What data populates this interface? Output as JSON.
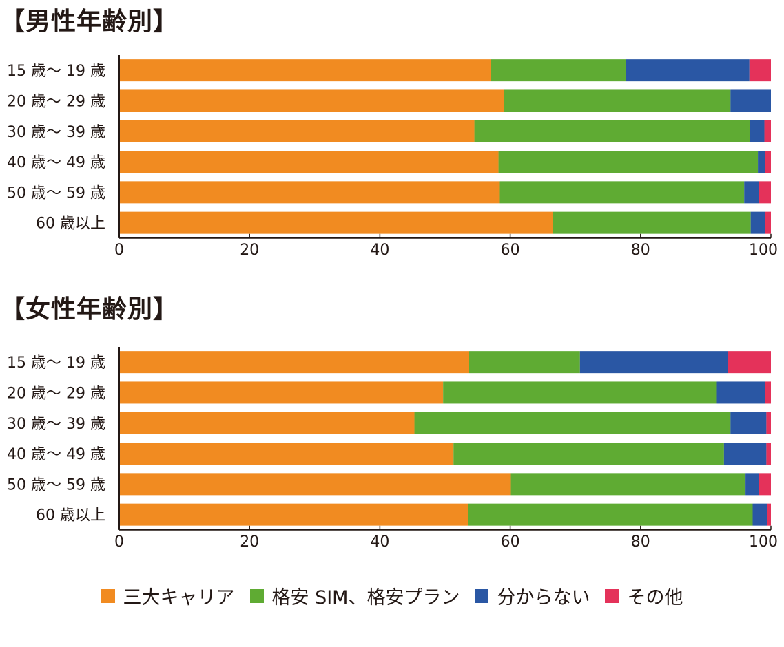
{
  "chart_data": [
    {
      "type": "bar",
      "orientation": "horizontal",
      "stacked": true,
      "title": "【男性年齢別】",
      "categories": [
        "15 歳～ 19 歳",
        "20 歳～ 29 歳",
        "30 歳～ 39 歳",
        "40 歳～ 49 歳",
        "50 歳～ 59 歳",
        "60 歳以上"
      ],
      "series": [
        {
          "name": "三大キャリア",
          "color": "#f18b21",
          "values": [
            57.0,
            59.0,
            54.5,
            58.2,
            58.4,
            66.5
          ]
        },
        {
          "name": "格安 SIM、格安プラン",
          "color": "#5fab33",
          "values": [
            20.8,
            34.8,
            42.3,
            39.8,
            37.5,
            30.4
          ]
        },
        {
          "name": "分からない",
          "color": "#2a57a4",
          "values": [
            18.9,
            6.2,
            2.2,
            1.1,
            2.2,
            2.2
          ]
        },
        {
          "name": "その他",
          "color": "#e4325a",
          "values": [
            3.3,
            0.0,
            1.0,
            0.9,
            1.9,
            0.9
          ]
        }
      ],
      "xlim": [
        0,
        100
      ],
      "xticks": [
        "0",
        "20",
        "40",
        "60",
        "80",
        "100"
      ],
      "grid": false
    },
    {
      "type": "bar",
      "orientation": "horizontal",
      "stacked": true,
      "title": "【女性年齢別】",
      "categories": [
        "15 歳～ 19 歳",
        "20 歳～ 29 歳",
        "30 歳～ 39 歳",
        "40 歳～ 49 歳",
        "50 歳～ 59 歳",
        "60 歳以上"
      ],
      "series": [
        {
          "name": "三大キャリア",
          "color": "#f18b21",
          "values": [
            53.7,
            49.7,
            45.3,
            51.3,
            60.1,
            53.5
          ]
        },
        {
          "name": "格安 SIM、格安プラン",
          "color": "#5fab33",
          "values": [
            17.0,
            42.0,
            48.5,
            41.5,
            36.0,
            43.7
          ]
        },
        {
          "name": "分からない",
          "color": "#2a57a4",
          "values": [
            22.7,
            7.4,
            5.5,
            6.5,
            2.0,
            2.2
          ]
        },
        {
          "name": "その他",
          "color": "#e4325a",
          "values": [
            6.6,
            0.9,
            0.7,
            0.7,
            1.9,
            0.6
          ]
        }
      ],
      "xlim": [
        0,
        100
      ],
      "xticks": [
        "0",
        "20",
        "40",
        "60",
        "80",
        "100"
      ],
      "grid": false
    }
  ],
  "legend": {
    "placement": "bottom",
    "items": [
      {
        "label": "三大キャリア",
        "color": "#f18b21"
      },
      {
        "label": "格安 SIM、格安プラン",
        "color": "#5fab33"
      },
      {
        "label": "分からない",
        "color": "#2a57a4"
      },
      {
        "label": "その他",
        "color": "#e4325a"
      }
    ]
  }
}
